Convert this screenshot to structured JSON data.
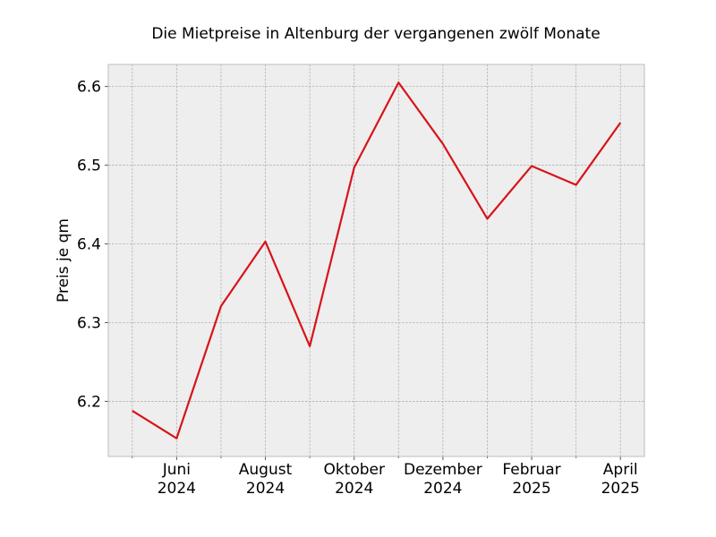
{
  "chart_data": {
    "type": "line",
    "title": "Die Mietpreise in Altenburg der vergangenen zwölf Monate",
    "xlabel": "",
    "ylabel": "Preis je qm",
    "x": [
      "2024-05",
      "2024-06",
      "2024-07",
      "2024-08",
      "2024-09",
      "2024-10",
      "2024-11",
      "2024-12",
      "2025-01",
      "2025-02",
      "2025-03",
      "2025-04"
    ],
    "series": [
      {
        "values": [
          6.188,
          6.153,
          6.321,
          6.403,
          6.27,
          6.497,
          6.605,
          6.527,
          6.432,
          6.499,
          6.475,
          6.554
        ]
      }
    ],
    "xticks": [
      {
        "x": "2024-06",
        "month": "Juni",
        "year": "2024"
      },
      {
        "x": "2024-08",
        "month": "August",
        "year": "2024"
      },
      {
        "x": "2024-10",
        "month": "Oktober",
        "year": "2024"
      },
      {
        "x": "2024-12",
        "month": "Dezember",
        "year": "2024"
      },
      {
        "x": "2025-02",
        "month": "Februar",
        "year": "2025"
      },
      {
        "x": "2025-04",
        "month": "April",
        "year": "2025"
      }
    ],
    "yticks": [
      "6.2",
      "6.3",
      "6.4",
      "6.5",
      "6.6"
    ],
    "ylim": [
      6.13,
      6.628
    ],
    "grid": true,
    "colors": {
      "line": "#d7141a",
      "background": "#eeeeee",
      "grid": "#b2b2b2",
      "frame": "#bcbcbc"
    }
  }
}
